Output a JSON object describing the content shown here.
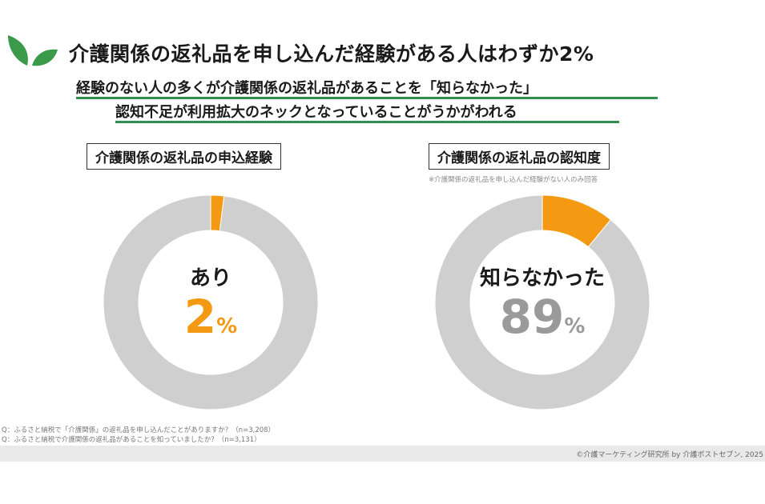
{
  "header": {
    "title": "介護関係の返礼品を申し込んだ経験がある人はわずか2%",
    "subtitle_line1": "経験のない人の多くが介護関係の返礼品があることを「知らなかった」",
    "subtitle_line2": "認知不足が利用拡大のネックとなっていることがうかがわれる"
  },
  "colors": {
    "accent": "#f39a12",
    "remainder": "#cfcfcf",
    "underline": "#2f8f4f",
    "logo": "#3a9a4a"
  },
  "chart_data": [
    {
      "type": "pie",
      "donut": true,
      "title": "介護関係の返礼品の申込経験",
      "center_label": "あり",
      "center_value": "2",
      "center_unit": "%",
      "slices": [
        {
          "label": "あり",
          "value": 2,
          "color": "#f39a12"
        },
        {
          "label": "",
          "value": 98,
          "color": "#cfcfcf"
        }
      ]
    },
    {
      "type": "pie",
      "donut": true,
      "title": "介護関係の返礼品の認知度",
      "note": "※介護関係の返礼品を申し込んだ経験がない人のみ回答",
      "center_label": "知らなかった",
      "center_value": "89",
      "center_unit": "%",
      "slices": [
        {
          "label": "",
          "value": 11,
          "color": "#f39a12"
        },
        {
          "label": "知らなかった",
          "value": 89,
          "color": "#cfcfcf"
        }
      ]
    }
  ],
  "footer": {
    "q1": "Q：ふるさと納税で「介護関係」の返礼品を申し込んだことがありますか？（n=3,208）",
    "q2": "Q：ふるさと納税で介護関係の返礼品があることを知っていましたか？（n=3,131）",
    "credit": "©介護マーケティング研究所 by 介護ポストセブン, 2025"
  }
}
